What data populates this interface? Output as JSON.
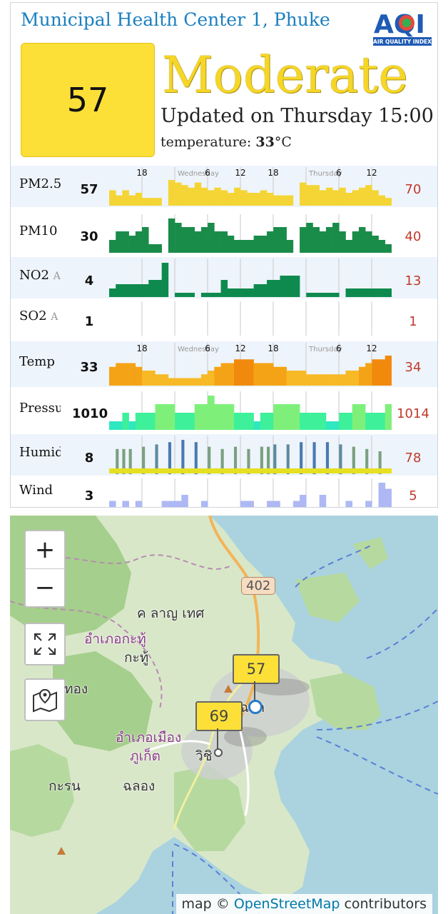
{
  "station": {
    "name": "Municipal Health Center 1, Phuke"
  },
  "logo": {
    "big": "AQI",
    "small": "AIR QUALITY INDEX"
  },
  "aqi": {
    "value": "57",
    "level": "Moderate",
    "color": "#fce038"
  },
  "updated": "Updated on Thursday 15:00",
  "temperature": {
    "label": "temperature: ",
    "value": "33",
    "unit": "°C"
  },
  "axis_ticks": {
    "top": [
      "18",
      "Wednesday",
      "6",
      "12",
      "18",
      "Thursday",
      "6",
      "12"
    ],
    "bottom": [
      "18",
      "Wednesday",
      "6",
      "12",
      "18",
      "Thursday",
      "6",
      "12"
    ]
  },
  "rows": [
    {
      "label": "PM2.5",
      "sub": "",
      "current": "57",
      "max": "70",
      "color": "#f4d535",
      "values": [
        6,
        4,
        6,
        4,
        5,
        3,
        3,
        3,
        0,
        10,
        9,
        8,
        7,
        9,
        7,
        6,
        7,
        6,
        5,
        7,
        6,
        5,
        5,
        6,
        5,
        4,
        4,
        4,
        0,
        9,
        8,
        8,
        6,
        7,
        6,
        7,
        5,
        6,
        7,
        8,
        6,
        4,
        3
      ]
    },
    {
      "label": "PM10",
      "sub": "",
      "current": "30",
      "max": "40",
      "color": "#1a8c4a",
      "values": [
        3,
        5,
        5,
        4,
        5,
        6,
        2,
        2,
        0,
        8,
        7,
        6,
        6,
        5,
        6,
        7,
        5,
        5,
        4,
        3,
        3,
        3,
        4,
        4,
        5,
        6,
        6,
        3,
        0,
        6,
        7,
        6,
        5,
        6,
        7,
        5,
        3,
        5,
        6,
        5,
        4,
        3,
        2
      ]
    },
    {
      "label": "NO2",
      "sub": "A",
      "current": "4",
      "max": "13",
      "color": "#0e8a4e",
      "values": [
        2,
        3,
        3,
        3,
        3,
        3,
        4,
        4,
        8,
        0,
        1,
        1,
        1,
        0,
        1,
        1,
        1,
        4,
        2,
        2,
        2,
        2,
        3,
        3,
        4,
        4,
        5,
        5,
        5,
        0,
        1,
        1,
        1,
        1,
        1,
        0,
        2,
        2,
        2,
        2,
        2,
        2,
        2
      ]
    },
    {
      "label": "SO2",
      "sub": "A",
      "current": "1",
      "max": "1",
      "color": "#1a8c4a",
      "values": []
    },
    {
      "label": "Temp",
      "sub": "",
      "current": "33",
      "max": "34",
      "color": "#f0a81a",
      "values": [
        30,
        31,
        31,
        31,
        30,
        29,
        29,
        28,
        28,
        27,
        27,
        27,
        27,
        27,
        28,
        29,
        30,
        31,
        31,
        32,
        32,
        32,
        31,
        31,
        31,
        30,
        30,
        29,
        29,
        29,
        28,
        28,
        28,
        28,
        28,
        28,
        29,
        29,
        30,
        31,
        32,
        32,
        33
      ]
    },
    {
      "label": "Pressure",
      "sub": "",
      "current": "1010",
      "max": "1014",
      "color": "#2ee89e",
      "values": [
        1011,
        1011,
        1012,
        1011,
        1012,
        1012,
        1012,
        1013,
        1013,
        1013,
        1012,
        1012,
        1012,
        1013,
        1013,
        1014,
        1013,
        1013,
        1013,
        1012,
        1012,
        1012,
        1011,
        1012,
        1012,
        1013,
        1013,
        1013,
        1013,
        1012,
        1012,
        1012,
        1012,
        1011,
        1011,
        1012,
        1012,
        1013,
        1013,
        1012,
        1012,
        1012,
        1013
      ]
    },
    {
      "label": "Humidity",
      "sub": "",
      "current": "8",
      "max": "78",
      "color": "#5d8a8a",
      "values": [
        0,
        55,
        55,
        55,
        0,
        60,
        0,
        65,
        0,
        70,
        0,
        75,
        0,
        70,
        0,
        60,
        0,
        55,
        0,
        60,
        0,
        55,
        0,
        60,
        60,
        65,
        0,
        65,
        0,
        70,
        0,
        70,
        0,
        70,
        0,
        65,
        0,
        60,
        0,
        55,
        0,
        50,
        0
      ]
    },
    {
      "label": "Wind",
      "sub": "",
      "current": "3",
      "max": "5",
      "color": "#aeb8f4",
      "values": [
        1,
        0,
        1,
        0,
        1,
        0,
        0,
        0,
        1,
        1,
        1,
        2,
        0,
        0,
        1,
        0,
        0,
        0,
        0,
        0,
        1,
        1,
        0,
        0,
        1,
        1,
        0,
        0,
        1,
        2,
        0,
        0,
        2,
        0,
        0,
        0,
        1,
        0,
        0,
        1,
        0,
        4,
        3
      ]
    }
  ],
  "map": {
    "zoom_in": "+",
    "zoom_out": "−",
    "markers": [
      {
        "value": "57"
      },
      {
        "value": "69"
      }
    ],
    "labels": {
      "district1": "อำเภอกะทู้",
      "district1_town": "กะทู้",
      "district2": "อำเภอเมือง",
      "district2_b": "ภูเก็ต",
      "karon": "กะรน",
      "chalong": "ฉลอง",
      "vichit": "วิชิ",
      "kata": "ฉลา",
      "mong": "ทอง",
      "top": "ค ลาญ เทศ",
      "road": "402"
    },
    "attribution": {
      "prefix": "map © ",
      "link": "OpenStreetMap",
      "suffix": " contributors"
    }
  }
}
